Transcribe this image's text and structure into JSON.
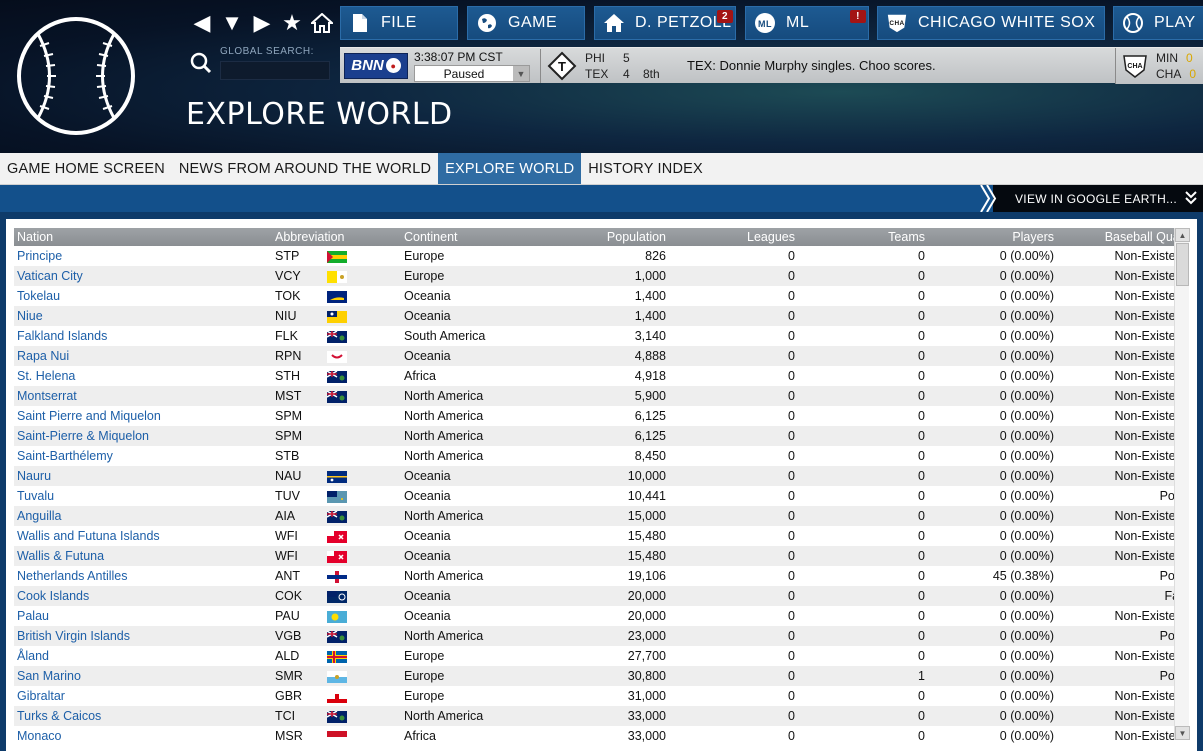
{
  "header": {
    "page_title": "EXPLORE WORLD",
    "search_label": "GLOBAL SEARCH:",
    "search_placeholder": "",
    "buttons": {
      "file": "FILE",
      "game": "GAME",
      "manager": "D. PETZOLL",
      "manager_badge": "2",
      "league": "ML",
      "league_badge": "!",
      "team": "CHICAGO WHITE SOX",
      "play": "PLAY"
    }
  },
  "ticker": {
    "bnn": "BNN",
    "time": "3:38:07  PM  CST",
    "status": "Paused",
    "game": {
      "away": "PHI",
      "away_score": "5",
      "home": "TEX",
      "home_score": "4",
      "inning": "8th"
    },
    "message": "TEX: Donnie Murphy singles. Choo scores.",
    "right_teams": [
      {
        "team": "MIN",
        "score": "0"
      },
      {
        "team": "CHA",
        "score": "0"
      }
    ]
  },
  "tabs": [
    {
      "label": "GAME HOME SCREEN",
      "active": false
    },
    {
      "label": "NEWS FROM AROUND THE WORLD",
      "active": false
    },
    {
      "label": "EXPLORE WORLD",
      "active": true
    },
    {
      "label": "HISTORY INDEX",
      "active": false
    }
  ],
  "subbar": {
    "google_earth": "VIEW IN GOOGLE EARTH..."
  },
  "table": {
    "columns": [
      "Nation",
      "Abbreviation",
      "Continent",
      "Population",
      "Leagues",
      "Teams",
      "Players",
      "Baseball Qual."
    ],
    "rows": [
      {
        "nation": "Principe",
        "abbr": "STP",
        "flag": "stp",
        "continent": "Europe",
        "population": "826",
        "leagues": "0",
        "teams": "0",
        "players": "0 (0.00%)",
        "quality": "Non-Existent"
      },
      {
        "nation": "Vatican City",
        "abbr": "VCY",
        "flag": "vcy",
        "continent": "Europe",
        "population": "1,000",
        "leagues": "0",
        "teams": "0",
        "players": "0 (0.00%)",
        "quality": "Non-Existent"
      },
      {
        "nation": "Tokelau",
        "abbr": "TOK",
        "flag": "tok",
        "continent": "Oceania",
        "population": "1,400",
        "leagues": "0",
        "teams": "0",
        "players": "0 (0.00%)",
        "quality": "Non-Existent"
      },
      {
        "nation": "Niue",
        "abbr": "NIU",
        "flag": "niu",
        "continent": "Oceania",
        "population": "1,400",
        "leagues": "0",
        "teams": "0",
        "players": "0 (0.00%)",
        "quality": "Non-Existent"
      },
      {
        "nation": "Falkland Islands",
        "abbr": "FLK",
        "flag": "blueens",
        "continent": "South America",
        "population": "3,140",
        "leagues": "0",
        "teams": "0",
        "players": "0 (0.00%)",
        "quality": "Non-Existent"
      },
      {
        "nation": "Rapa Nui",
        "abbr": "RPN",
        "flag": "rpn",
        "continent": "Oceania",
        "population": "4,888",
        "leagues": "0",
        "teams": "0",
        "players": "0 (0.00%)",
        "quality": "Non-Existent"
      },
      {
        "nation": "St. Helena",
        "abbr": "STH",
        "flag": "blueens",
        "continent": "Africa",
        "population": "4,918",
        "leagues": "0",
        "teams": "0",
        "players": "0 (0.00%)",
        "quality": "Non-Existent"
      },
      {
        "nation": "Montserrat",
        "abbr": "MST",
        "flag": "blueens",
        "continent": "North America",
        "population": "5,900",
        "leagues": "0",
        "teams": "0",
        "players": "0 (0.00%)",
        "quality": "Non-Existent"
      },
      {
        "nation": "Saint Pierre and Miquelon",
        "abbr": "SPM",
        "flag": "",
        "continent": "North America",
        "population": "6,125",
        "leagues": "0",
        "teams": "0",
        "players": "0 (0.00%)",
        "quality": "Non-Existent"
      },
      {
        "nation": "Saint-Pierre & Miquelon",
        "abbr": "SPM",
        "flag": "",
        "continent": "North America",
        "population": "6,125",
        "leagues": "0",
        "teams": "0",
        "players": "0 (0.00%)",
        "quality": "Non-Existent"
      },
      {
        "nation": "Saint-Barthélemy",
        "abbr": "STB",
        "flag": "",
        "continent": "North America",
        "population": "8,450",
        "leagues": "0",
        "teams": "0",
        "players": "0 (0.00%)",
        "quality": "Non-Existent"
      },
      {
        "nation": "Nauru",
        "abbr": "NAU",
        "flag": "nau",
        "continent": "Oceania",
        "population": "10,000",
        "leagues": "0",
        "teams": "0",
        "players": "0 (0.00%)",
        "quality": "Non-Existent"
      },
      {
        "nation": "Tuvalu",
        "abbr": "TUV",
        "flag": "tuv",
        "continent": "Oceania",
        "population": "10,441",
        "leagues": "0",
        "teams": "0",
        "players": "0 (0.00%)",
        "quality": "Poor"
      },
      {
        "nation": "Anguilla",
        "abbr": "AIA",
        "flag": "blueens",
        "continent": "North America",
        "population": "15,000",
        "leagues": "0",
        "teams": "0",
        "players": "0 (0.00%)",
        "quality": "Non-Existent"
      },
      {
        "nation": "Wallis and Futuna Islands",
        "abbr": "WFI",
        "flag": "wfi",
        "continent": "Oceania",
        "population": "15,480",
        "leagues": "0",
        "teams": "0",
        "players": "0 (0.00%)",
        "quality": "Non-Existent"
      },
      {
        "nation": "Wallis & Futuna",
        "abbr": "WFI",
        "flag": "wfi",
        "continent": "Oceania",
        "population": "15,480",
        "leagues": "0",
        "teams": "0",
        "players": "0 (0.00%)",
        "quality": "Non-Existent"
      },
      {
        "nation": "Netherlands Antilles",
        "abbr": "ANT",
        "flag": "ant",
        "continent": "North America",
        "population": "19,106",
        "leagues": "0",
        "teams": "0",
        "players": "45 (0.38%)",
        "quality": "Poor"
      },
      {
        "nation": "Cook Islands",
        "abbr": "COK",
        "flag": "cok",
        "continent": "Oceania",
        "population": "20,000",
        "leagues": "0",
        "teams": "0",
        "players": "0 (0.00%)",
        "quality": "Fair"
      },
      {
        "nation": "Palau",
        "abbr": "PAU",
        "flag": "pau",
        "continent": "Oceania",
        "population": "20,000",
        "leagues": "0",
        "teams": "0",
        "players": "0 (0.00%)",
        "quality": "Non-Existent"
      },
      {
        "nation": "British Virgin Islands",
        "abbr": "VGB",
        "flag": "blueens",
        "continent": "North America",
        "population": "23,000",
        "leagues": "0",
        "teams": "0",
        "players": "0 (0.00%)",
        "quality": "Poor"
      },
      {
        "nation": "Åland",
        "abbr": "ALD",
        "flag": "ald",
        "continent": "Europe",
        "population": "27,700",
        "leagues": "0",
        "teams": "0",
        "players": "0 (0.00%)",
        "quality": "Non-Existent"
      },
      {
        "nation": "San Marino",
        "abbr": "SMR",
        "flag": "smr",
        "continent": "Europe",
        "population": "30,800",
        "leagues": "0",
        "teams": "1",
        "players": "0 (0.00%)",
        "quality": "Poor"
      },
      {
        "nation": "Gibraltar",
        "abbr": "GBR",
        "flag": "gbr",
        "continent": "Europe",
        "population": "31,000",
        "leagues": "0",
        "teams": "0",
        "players": "0 (0.00%)",
        "quality": "Non-Existent"
      },
      {
        "nation": "Turks & Caicos",
        "abbr": "TCI",
        "flag": "blueens",
        "continent": "North America",
        "population": "33,000",
        "leagues": "0",
        "teams": "0",
        "players": "0 (0.00%)",
        "quality": "Non-Existent"
      },
      {
        "nation": "Monaco",
        "abbr": "MSR",
        "flag": "mco",
        "continent": "Africa",
        "population": "33,000",
        "leagues": "0",
        "teams": "0",
        "players": "0 (0.00%)",
        "quality": "Non-Existent"
      }
    ]
  },
  "colors": {
    "accent": "#2f6ca3",
    "link": "#1d5fa8",
    "header_bg": "#0e2640",
    "badge": "#a31414"
  }
}
